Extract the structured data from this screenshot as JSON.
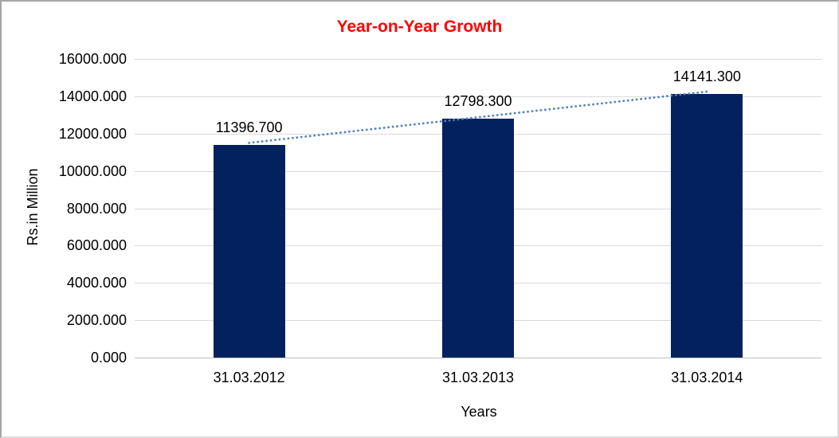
{
  "chart_data": {
    "type": "bar",
    "title": "Year-on-Year Growth",
    "title_color": "#ff0000",
    "categories": [
      "31.03.2012",
      "31.03.2013",
      "31.03.2014"
    ],
    "values": [
      11396.7,
      12798.3,
      14141.3
    ],
    "data_labels": [
      "11396.700",
      "12798.300",
      "14141.300"
    ],
    "xlabel": "Years",
    "ylabel": "Rs.in Million",
    "ylim": [
      0,
      16000
    ],
    "ytick_step": 2000,
    "ytick_labels": [
      "0.000",
      "2000.000",
      "4000.000",
      "6000.000",
      "8000.000",
      "10000.000",
      "12000.000",
      "14000.000",
      "16000.000"
    ],
    "grid": true,
    "legend": false,
    "bar_color": "#02215e",
    "gridline_color": "#d9d9d9",
    "axis_line_color": "#c0c0c0",
    "trendline": {
      "type": "linear",
      "style": "dotted",
      "color": "#4f81bd",
      "from_category_index": 0,
      "to_category_index": 2
    }
  }
}
